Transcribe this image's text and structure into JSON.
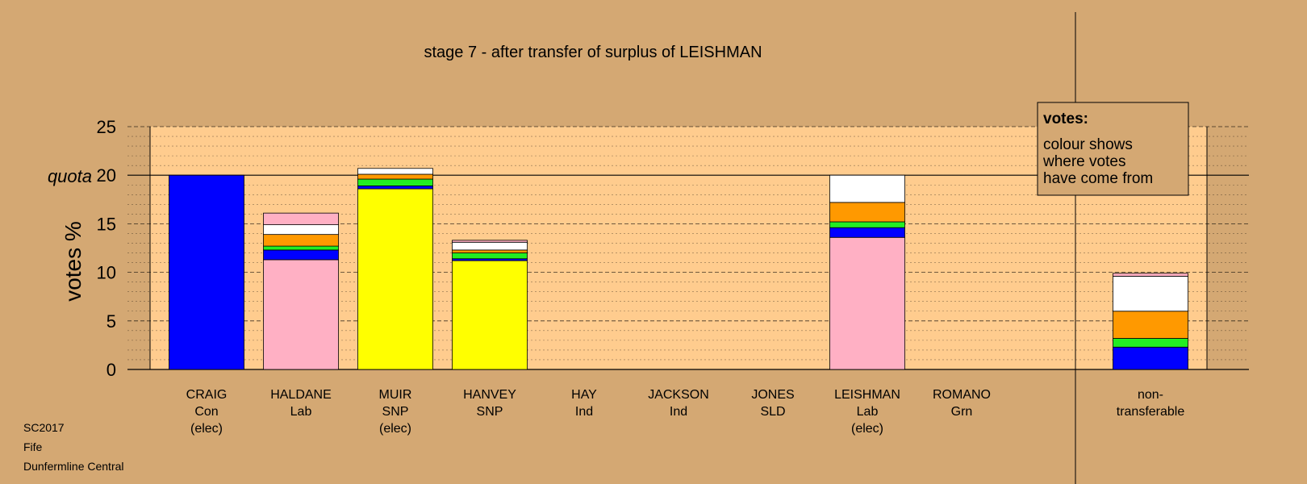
{
  "chart_data": {
    "type": "bar",
    "stacked": true,
    "title": "stage 7 - after transfer of surplus of LEISHMAN",
    "ylabel": "votes %",
    "quota_label": "quota",
    "quota": 20,
    "ylim": [
      0,
      25
    ],
    "yticks": [
      "0",
      "5",
      "10",
      "15",
      "20",
      "25"
    ],
    "grid": "dotted minor, dashed major",
    "colors": {
      "con": "#0000ff",
      "lab": "#ffb0c4",
      "snp": "#ffff00",
      "ld": "#ff9900",
      "grn": "#22ee22",
      "ind": "#ffffff",
      "background": "#d4a873",
      "plot": "#ffcc8e"
    },
    "categories": [
      {
        "name": "CRAIG",
        "party": "Con",
        "status": "(elec)"
      },
      {
        "name": "HALDANE",
        "party": "Lab",
        "status": ""
      },
      {
        "name": "MUIR",
        "party": "SNP",
        "status": "(elec)"
      },
      {
        "name": "HANVEY",
        "party": "SNP",
        "status": ""
      },
      {
        "name": "HAY",
        "party": "Ind",
        "status": ""
      },
      {
        "name": "JACKSON",
        "party": "Ind",
        "status": ""
      },
      {
        "name": "JONES",
        "party": "SLD",
        "status": ""
      },
      {
        "name": "LEISHMAN",
        "party": "Lab",
        "status": "(elec)"
      },
      {
        "name": "ROMANO",
        "party": "Grn",
        "status": ""
      }
    ],
    "bars": [
      {
        "segments": [
          {
            "color": "con",
            "value": 20.0
          }
        ]
      },
      {
        "segments": [
          {
            "color": "lab",
            "value": 11.3
          },
          {
            "color": "con",
            "value": 1.0
          },
          {
            "color": "grn",
            "value": 0.4
          },
          {
            "color": "ld",
            "value": 1.2
          },
          {
            "color": "ind",
            "value": 1.0
          },
          {
            "color": "lab",
            "value": 1.2
          }
        ]
      },
      {
        "segments": [
          {
            "color": "snp",
            "value": 18.6
          },
          {
            "color": "con",
            "value": 0.3
          },
          {
            "color": "grn",
            "value": 0.7
          },
          {
            "color": "ld",
            "value": 0.5
          },
          {
            "color": "ind",
            "value": 0.6
          }
        ]
      },
      {
        "segments": [
          {
            "color": "snp",
            "value": 11.2
          },
          {
            "color": "con",
            "value": 0.2
          },
          {
            "color": "grn",
            "value": 0.6
          },
          {
            "color": "ld",
            "value": 0.3
          },
          {
            "color": "ind",
            "value": 0.8
          },
          {
            "color": "lab",
            "value": 0.2
          }
        ]
      },
      {
        "segments": []
      },
      {
        "segments": []
      },
      {
        "segments": []
      },
      {
        "segments": [
          {
            "color": "lab",
            "value": 13.6
          },
          {
            "color": "con",
            "value": 1.0
          },
          {
            "color": "grn",
            "value": 0.6
          },
          {
            "color": "ld",
            "value": 2.0
          },
          {
            "color": "ind",
            "value": 2.8
          }
        ]
      },
      {
        "segments": []
      }
    ],
    "nontransferable": {
      "label_line1": "non-",
      "label_line2": "transferable",
      "segments": [
        {
          "color": "con",
          "value": 2.3
        },
        {
          "color": "grn",
          "value": 0.9
        },
        {
          "color": "ld",
          "value": 2.8
        },
        {
          "color": "ind",
          "value": 3.6
        },
        {
          "color": "lab",
          "value": 0.3
        }
      ]
    },
    "legend": {
      "title": "votes:",
      "lines": [
        "colour shows",
        "where votes",
        "have come from"
      ],
      "position": "top-right"
    }
  },
  "info": {
    "election": "SC2017",
    "council": "Fife",
    "ward": "Dunfermline Central"
  }
}
